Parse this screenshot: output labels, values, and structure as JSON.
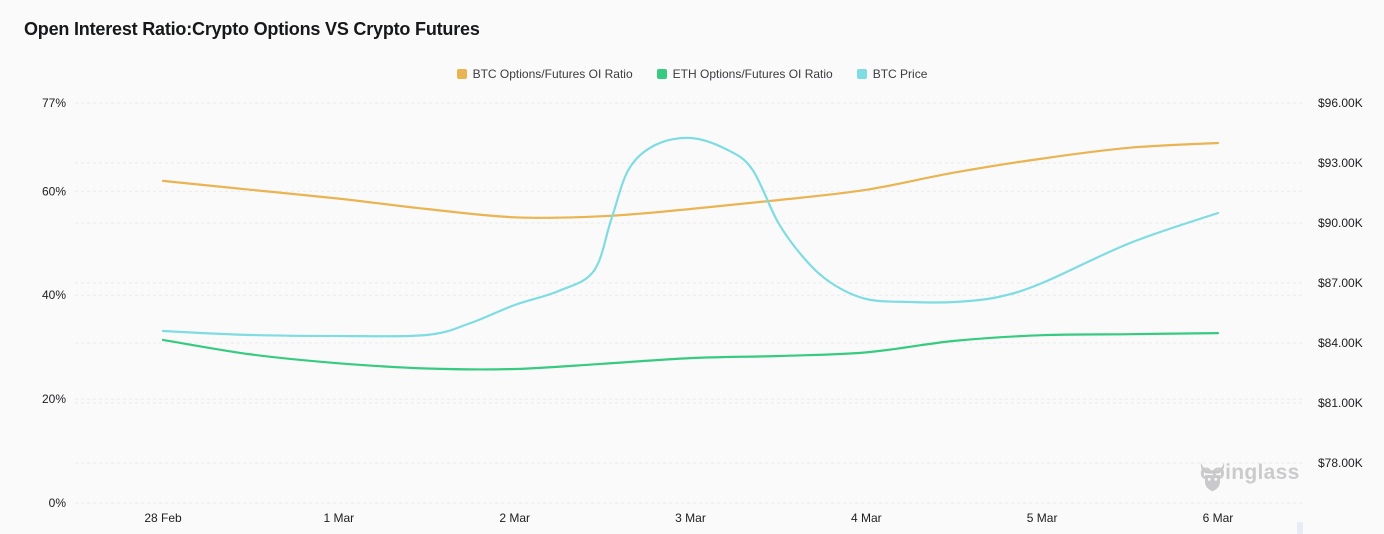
{
  "header": {
    "title": "Open Interest Ratio:Crypto Options VS Crypto Futures"
  },
  "watermark": {
    "text": "coinglass",
    "icon": "coinglass-bull-icon"
  },
  "colors": {
    "background": "#fafafa",
    "grid": "#eaeaec",
    "axis_text": "#202024",
    "legend_text": "#3c3c40",
    "title_text": "#17181a",
    "watermark": "#cbcbcd",
    "btc_ratio": "#e9b451",
    "eth_ratio": "#36cb80",
    "btc_price": "#7edce2"
  },
  "chart_data": {
    "type": "line",
    "title": "Open Interest Ratio:Crypto Options VS Crypto Futures",
    "legend_position": "top-center",
    "grid_dashed": true,
    "x_axis": {
      "tick_labels": [
        "28 Feb",
        "1 Mar",
        "2 Mar",
        "3 Mar",
        "4 Mar",
        "5 Mar",
        "6 Mar"
      ],
      "tick_days": [
        0,
        1,
        2,
        3,
        4,
        5,
        6
      ]
    },
    "left_axis": {
      "unit": "%",
      "min": 0,
      "max": 77,
      "tick_labels": [
        "77%",
        "60%",
        "40%",
        "20%",
        "0%"
      ],
      "tick_values": [
        77,
        60,
        40,
        20,
        0
      ]
    },
    "right_axis": {
      "unit": "USD thousands",
      "min": 78,
      "max": 96,
      "tick_labels": [
        "$96.00K",
        "$93.00K",
        "$90.00K",
        "$87.00K",
        "$84.00K",
        "$81.00K",
        "$78.00K"
      ],
      "tick_values": [
        96,
        93,
        90,
        87,
        84,
        81,
        78
      ]
    },
    "series": [
      {
        "name": "BTC Options/Futures OI Ratio",
        "slug": "btc-ratio",
        "axis": "left",
        "color": "#e9b451",
        "x": [
          0,
          0.5,
          1,
          1.5,
          2,
          2.5,
          3,
          3.5,
          4,
          4.5,
          5,
          5.5,
          6
        ],
        "values": [
          62.0,
          60.3,
          58.6,
          56.6,
          55.0,
          55.2,
          56.6,
          58.3,
          60.3,
          63.6,
          66.3,
          68.4,
          69.3
        ]
      },
      {
        "name": "ETH Options/Futures OI Ratio",
        "slug": "eth-ratio",
        "axis": "left",
        "color": "#36cb80",
        "x": [
          0,
          0.5,
          1,
          1.5,
          2,
          2.5,
          3,
          3.5,
          4,
          4.5,
          5,
          5.5,
          6
        ],
        "values": [
          31.4,
          28.6,
          26.9,
          25.9,
          25.8,
          26.8,
          27.9,
          28.3,
          29.0,
          31.2,
          32.3,
          32.5,
          32.7
        ]
      },
      {
        "name": "BTC Price",
        "slug": "btc-price",
        "axis": "right",
        "color": "#7edce2",
        "x": [
          0,
          0.5,
          1,
          1.5,
          1.75,
          2,
          2.25,
          2.45,
          2.55,
          2.65,
          2.8,
          3,
          3.2,
          3.35,
          3.5,
          3.65,
          3.8,
          4,
          4.25,
          4.5,
          4.75,
          5,
          5.5,
          6
        ],
        "values": [
          84.6,
          84.4,
          84.35,
          84.4,
          85.0,
          85.9,
          86.6,
          87.6,
          90.2,
          92.7,
          93.9,
          94.25,
          93.7,
          92.7,
          90.0,
          88.2,
          87.0,
          86.2,
          86.05,
          86.05,
          86.3,
          87.0,
          89.0,
          90.5
        ]
      }
    ]
  }
}
